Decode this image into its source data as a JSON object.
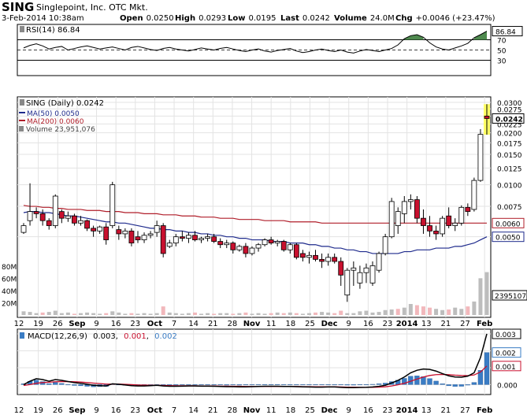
{
  "header": {
    "symbol": "SING",
    "company": "Singlepoint, Inc. OTC Mkt.",
    "datetime": "3-Feb-2014 10:38am",
    "quote": [
      {
        "label": "Open",
        "value": "0.0250"
      },
      {
        "label": "High",
        "value": "0.0293"
      },
      {
        "label": "Low",
        "value": "0.0195"
      },
      {
        "label": "Last",
        "value": "0.0242"
      },
      {
        "label": "Volume",
        "value": "24.0M"
      },
      {
        "label": "Chg",
        "value": "+0.0046 (+23.47%)"
      }
    ]
  },
  "colors": {
    "up_candle": "#ffffff",
    "down_candle": "#c8102e",
    "wick": "#000000",
    "ma50": "#1e2a8c",
    "ma200": "#b01e2a",
    "volume": "#bdbdbd",
    "volume_down": "#f2b8bc",
    "rsi_line": "#000000",
    "rsi_fill": "#4f8a4f",
    "macd_line": "#000000",
    "macd_signal": "#c8102e",
    "macd_hist": "#3a7cc4",
    "highlight": "#ffff66"
  },
  "chart_data": [
    {
      "type": "line",
      "panel": "rsi",
      "legend": "RSI(14) 86.84",
      "ylim": [
        0,
        100
      ],
      "yticks": [
        "70",
        "50",
        "30"
      ],
      "reference_lines": [
        70,
        50,
        30
      ],
      "last_label": "86.84",
      "values": [
        54,
        59,
        62,
        58,
        52,
        55,
        57,
        50,
        53,
        56,
        58,
        55,
        52,
        54,
        56,
        53,
        50,
        55,
        57,
        54,
        51,
        49,
        53,
        55,
        52,
        50,
        48,
        51,
        54,
        52,
        50,
        53,
        55,
        52,
        49,
        47,
        50,
        52,
        48,
        46,
        49,
        51,
        53,
        48,
        45,
        47,
        50,
        52,
        49,
        47,
        50,
        46,
        44,
        48,
        51,
        49,
        47,
        50,
        53,
        60,
        72,
        78,
        80,
        75,
        64,
        56,
        52,
        50,
        54,
        58,
        63,
        74,
        80,
        86.84
      ]
    },
    {
      "type": "candlestick",
      "panel": "price",
      "legend": {
        "price": "SING (Daily) 0.0242",
        "ma50": "MA(50) 0.0050",
        "ma200": "MA(200) 0.0060",
        "volume": "Volume 23,951,076"
      },
      "scale": "log",
      "ylim": [
        0.0018,
        0.03
      ],
      "yticks": [
        "0.0300",
        "0.0275",
        "0.0250",
        "0.0225",
        "0.0200",
        "0.0175",
        "0.0150",
        "0.0125",
        "0.0100",
        "0.0075",
        "0.0050"
      ],
      "price_label": "0.0242",
      "ma200_label": "0.0060",
      "ma50_label": "0.0050",
      "volume_ticks": [
        "80M",
        "60M",
        "40M",
        "20M"
      ],
      "volume_ylim": [
        0,
        90
      ],
      "volume_label": "23951076",
      "xticks": [
        "12",
        "19",
        "26",
        "Sep",
        "9",
        "16",
        "23",
        "Oct",
        "7",
        "14",
        "21",
        "28",
        "Nov",
        "11",
        "18",
        "25",
        "Dec",
        "9",
        "16",
        "23",
        "2014",
        "13",
        "21",
        "27",
        "Feb"
      ],
      "ohlc": [
        [
          0.0053,
          0.006,
          0.0052,
          0.0058
        ],
        [
          0.0062,
          0.0102,
          0.0058,
          0.007
        ],
        [
          0.007,
          0.0074,
          0.0064,
          0.0068
        ],
        [
          0.0068,
          0.0072,
          0.0058,
          0.0062
        ],
        [
          0.0062,
          0.0064,
          0.0055,
          0.0058
        ],
        [
          0.0058,
          0.0088,
          0.0056,
          0.0086
        ],
        [
          0.007,
          0.0072,
          0.006,
          0.0064
        ],
        [
          0.0064,
          0.007,
          0.0061,
          0.0066
        ],
        [
          0.0066,
          0.0068,
          0.0058,
          0.006
        ],
        [
          0.006,
          0.0066,
          0.0058,
          0.0062
        ],
        [
          0.0062,
          0.0063,
          0.0054,
          0.0056
        ],
        [
          0.0056,
          0.0058,
          0.005,
          0.0054
        ],
        [
          0.0054,
          0.0058,
          0.0052,
          0.0057
        ],
        [
          0.0057,
          0.006,
          0.0045,
          0.0048
        ],
        [
          0.0058,
          0.0104,
          0.0056,
          0.01
        ],
        [
          0.0055,
          0.0058,
          0.0048,
          0.0052
        ],
        [
          0.0052,
          0.0056,
          0.0049,
          0.0054
        ],
        [
          0.0054,
          0.0056,
          0.0044,
          0.0046
        ],
        [
          0.005,
          0.0054,
          0.0046,
          0.0048
        ],
        [
          0.0048,
          0.0053,
          0.0046,
          0.0051
        ],
        [
          0.0051,
          0.0054,
          0.0049,
          0.0052
        ],
        [
          0.0053,
          0.0062,
          0.005,
          0.0058
        ],
        [
          0.0058,
          0.006,
          0.0038,
          0.004
        ],
        [
          0.0044,
          0.0048,
          0.0043,
          0.0046
        ],
        [
          0.0046,
          0.0052,
          0.0044,
          0.005
        ],
        [
          0.005,
          0.0054,
          0.0047,
          0.0049
        ],
        [
          0.0049,
          0.0053,
          0.0046,
          0.0051
        ],
        [
          0.0051,
          0.0054,
          0.0047,
          0.0048
        ],
        [
          0.0048,
          0.005,
          0.0046,
          0.0049
        ],
        [
          0.0049,
          0.0052,
          0.0047,
          0.005
        ],
        [
          0.005,
          0.0052,
          0.0046,
          0.0047
        ],
        [
          0.0047,
          0.0049,
          0.0043,
          0.0045
        ],
        [
          0.0045,
          0.0048,
          0.0043,
          0.0046
        ],
        [
          0.0046,
          0.0047,
          0.004,
          0.0042
        ],
        [
          0.0042,
          0.0045,
          0.0041,
          0.0044
        ],
        [
          0.0044,
          0.0046,
          0.0038,
          0.004
        ],
        [
          0.004,
          0.0044,
          0.0039,
          0.0043
        ],
        [
          0.0043,
          0.0046,
          0.0041,
          0.0045
        ],
        [
          0.0045,
          0.0049,
          0.0044,
          0.0048
        ],
        [
          0.0048,
          0.005,
          0.0045,
          0.0046
        ],
        [
          0.0046,
          0.0048,
          0.0044,
          0.0047
        ],
        [
          0.0047,
          0.0048,
          0.0041,
          0.0042
        ],
        [
          0.0042,
          0.0046,
          0.004,
          0.0045
        ],
        [
          0.0045,
          0.0046,
          0.0037,
          0.0038
        ],
        [
          0.004,
          0.0042,
          0.0036,
          0.0038
        ],
        [
          0.0038,
          0.0041,
          0.0035,
          0.0039
        ],
        [
          0.0039,
          0.0042,
          0.0036,
          0.0037
        ],
        [
          0.0037,
          0.004,
          0.0033,
          0.0036
        ],
        [
          0.0036,
          0.004,
          0.0034,
          0.0038
        ],
        [
          0.0038,
          0.004,
          0.0035,
          0.0036
        ],
        [
          0.0036,
          0.0038,
          0.0026,
          0.003
        ],
        [
          0.0023,
          0.0033,
          0.0021,
          0.0032
        ],
        [
          0.0032,
          0.0036,
          0.0026,
          0.0033
        ],
        [
          0.0027,
          0.0034,
          0.0025,
          0.0031
        ],
        [
          0.0031,
          0.0035,
          0.0027,
          0.0033
        ],
        [
          0.0027,
          0.0036,
          0.0026,
          0.0034
        ],
        [
          0.0032,
          0.0041,
          0.0031,
          0.004
        ],
        [
          0.004,
          0.0052,
          0.0039,
          0.005
        ],
        [
          0.005,
          0.0084,
          0.0049,
          0.008
        ],
        [
          0.0058,
          0.0074,
          0.0052,
          0.007
        ],
        [
          0.0068,
          0.0086,
          0.006,
          0.008
        ],
        [
          0.008,
          0.0088,
          0.0072,
          0.0082
        ],
        [
          0.0082,
          0.0086,
          0.006,
          0.0064
        ],
        [
          0.0064,
          0.0072,
          0.0052,
          0.0058
        ],
        [
          0.0058,
          0.0066,
          0.005,
          0.0054
        ],
        [
          0.0054,
          0.0058,
          0.0048,
          0.0052
        ],
        [
          0.0052,
          0.0066,
          0.005,
          0.0064
        ],
        [
          0.0066,
          0.0074,
          0.0056,
          0.0058
        ],
        [
          0.0058,
          0.0064,
          0.0054,
          0.006
        ],
        [
          0.006,
          0.0076,
          0.0058,
          0.0074
        ],
        [
          0.0074,
          0.0078,
          0.0066,
          0.007
        ],
        [
          0.0072,
          0.011,
          0.007,
          0.0106
        ],
        [
          0.0106,
          0.021,
          0.0104,
          0.0196
        ],
        [
          0.025,
          0.0293,
          0.0195,
          0.0242
        ]
      ],
      "ma50": [
        0.0069,
        0.007,
        0.007,
        0.0069,
        0.0069,
        0.0068,
        0.0067,
        0.0066,
        0.0066,
        0.0065,
        0.0064,
        0.0063,
        0.0062,
        0.0061,
        0.0061,
        0.006,
        0.006,
        0.0059,
        0.0058,
        0.0057,
        0.0056,
        0.0056,
        0.0055,
        0.0055,
        0.0054,
        0.0054,
        0.0053,
        0.0053,
        0.0052,
        0.0052,
        0.0051,
        0.0051,
        0.005,
        0.005,
        0.0049,
        0.0049,
        0.0048,
        0.0048,
        0.0048,
        0.0047,
        0.0047,
        0.0047,
        0.0046,
        0.0046,
        0.0046,
        0.0045,
        0.0045,
        0.0044,
        0.0044,
        0.0043,
        0.0043,
        0.0042,
        0.0042,
        0.0041,
        0.0041,
        0.004,
        0.004,
        0.004,
        0.004,
        0.004,
        0.0041,
        0.0041,
        0.0042,
        0.0042,
        0.0042,
        0.0043,
        0.0043,
        0.0043,
        0.0044,
        0.0044,
        0.0045,
        0.0046,
        0.0048,
        0.005
      ],
      "ma200": [
        0.0076,
        0.0075,
        0.0075,
        0.0074,
        0.0074,
        0.0073,
        0.0073,
        0.0072,
        0.0072,
        0.0072,
        0.0071,
        0.0071,
        0.0071,
        0.007,
        0.007,
        0.007,
        0.0069,
        0.0069,
        0.0069,
        0.0068,
        0.0068,
        0.0068,
        0.0067,
        0.0067,
        0.0067,
        0.0066,
        0.0066,
        0.0066,
        0.0065,
        0.0065,
        0.0065,
        0.0064,
        0.0064,
        0.0064,
        0.0063,
        0.0063,
        0.0063,
        0.0063,
        0.0062,
        0.0062,
        0.0062,
        0.0062,
        0.0061,
        0.0061,
        0.0061,
        0.0061,
        0.0061,
        0.006,
        0.006,
        0.006,
        0.006,
        0.006,
        0.006,
        0.006,
        0.006,
        0.006,
        0.006,
        0.006,
        0.006,
        0.006,
        0.006,
        0.006,
        0.006,
        0.006,
        0.006,
        0.006,
        0.006,
        0.006,
        0.006,
        0.006,
        0.006,
        0.006,
        0.006,
        0.006
      ],
      "volume": [
        6,
        5,
        3,
        4,
        5,
        7,
        3,
        4,
        2,
        3,
        4,
        3,
        2,
        3,
        6,
        4,
        2,
        3,
        2,
        3,
        2,
        3,
        14,
        4,
        3,
        2,
        3,
        4,
        2,
        3,
        2,
        3,
        3,
        2,
        3,
        4,
        2,
        3,
        2,
        3,
        4,
        3,
        4,
        3,
        2,
        3,
        4,
        5,
        4,
        3,
        7,
        3,
        3,
        6,
        7,
        4,
        5,
        8,
        9,
        10,
        12,
        18,
        16,
        14,
        12,
        10,
        8,
        9,
        12,
        10,
        14,
        22,
        60,
        70
      ],
      "volume_down": [
        false,
        false,
        false,
        true,
        false,
        false,
        false,
        false,
        true,
        false,
        false,
        false,
        false,
        true,
        false,
        false,
        false,
        true,
        false,
        false,
        false,
        false,
        true,
        false,
        false,
        false,
        false,
        true,
        false,
        false,
        true,
        false,
        false,
        true,
        false,
        true,
        false,
        false,
        false,
        true,
        false,
        true,
        false,
        true,
        false,
        false,
        true,
        false,
        false,
        true,
        true,
        false,
        false,
        false,
        false,
        false,
        false,
        false,
        false,
        true,
        false,
        false,
        true,
        true,
        true,
        false,
        false,
        true,
        false,
        false,
        true,
        false,
        false,
        false
      ]
    },
    {
      "type": "line",
      "panel": "macd",
      "legend": {
        "name": "MACD(12,26,9)",
        "macd": "0.003",
        "signal": "0.001",
        "hist": "0.002"
      },
      "ylim": [
        -0.0004,
        0.003
      ],
      "yticks": [
        "0.003",
        "0.002",
        "0.001",
        "0.000"
      ],
      "last_labels": {
        "macd": "0.003",
        "hist": "0.002",
        "signal": "0.001"
      },
      "xticks": [
        "12",
        "19",
        "26",
        "Sep",
        "9",
        "16",
        "23",
        "Oct",
        "7",
        "14",
        "21",
        "28",
        "Nov",
        "11",
        "18",
        "25",
        "Dec",
        "9",
        "16",
        "23",
        "2014",
        "13",
        "21",
        "27",
        "Feb"
      ],
      "macd": [
        0.0,
        0.0002,
        0.00035,
        0.0003,
        0.0002,
        0.0003,
        0.00025,
        0.00018,
        0.00012,
        8e-05,
        2e-05,
        -4e-05,
        -6e-05,
        -8e-05,
        5e-05,
        2e-05,
        -2e-05,
        -6e-05,
        -8e-05,
        -8e-05,
        -6e-05,
        -4e-05,
        -8e-05,
        -0.0001,
        -0.0001,
        -9e-05,
        -8e-05,
        -8e-05,
        -9e-05,
        -9e-05,
        -0.0001,
        -0.00011,
        -0.00012,
        -0.00012,
        -0.00013,
        -0.00013,
        -0.00012,
        -0.00011,
        -0.0001,
        -0.0001,
        -0.0001,
        -0.00011,
        -0.00011,
        -0.00012,
        -0.00013,
        -0.00014,
        -0.00015,
        -0.00015,
        -0.00014,
        -0.00014,
        -0.00016,
        -0.00018,
        -0.00018,
        -0.00017,
        -0.00016,
        -0.00014,
        -0.0001,
        -4e-05,
        0.0001,
        0.00025,
        0.00045,
        0.0007,
        0.00085,
        0.00092,
        0.0009,
        0.0008,
        0.00065,
        0.00052,
        0.00045,
        0.00044,
        0.0005,
        0.0007,
        0.0016,
        0.003
      ],
      "signal": [
        -5e-05,
        0.0,
        8e-05,
        0.00012,
        0.00014,
        0.00017,
        0.00018,
        0.00018,
        0.00017,
        0.00015,
        0.00012,
        9e-05,
        6e-05,
        3e-05,
        3e-05,
        3e-05,
        2e-05,
        0.0,
        -2e-05,
        -3e-05,
        -4e-05,
        -4e-05,
        -5e-05,
        -6e-05,
        -7e-05,
        -7e-05,
        -7e-05,
        -7e-05,
        -8e-05,
        -8e-05,
        -8e-05,
        -9e-05,
        -9e-05,
        -0.0001,
        -0.0001,
        -0.00011,
        -0.00011,
        -0.00011,
        -0.00011,
        -0.00011,
        -0.00011,
        -0.00011,
        -0.00011,
        -0.00011,
        -0.00012,
        -0.00012,
        -0.00013,
        -0.00013,
        -0.00013,
        -0.00013,
        -0.00014,
        -0.00015,
        -0.00015,
        -0.00016,
        -0.00016,
        -0.00016,
        -0.00015,
        -0.00013,
        -8e-05,
        -1e-05,
        8e-05,
        0.0002,
        0.00033,
        0.00045,
        0.00054,
        0.00059,
        0.0006,
        0.00059,
        0.00056,
        0.00054,
        0.00053,
        0.00057,
        0.00075,
        0.0011
      ]
    }
  ]
}
